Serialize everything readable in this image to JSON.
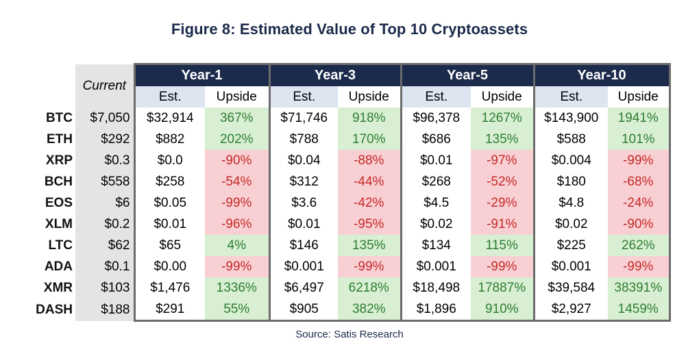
{
  "title": "Figure 8: Estimated Value of Top 10 Cryptoassets",
  "source": "Source: Satis Research",
  "current_label": "Current",
  "years": [
    "Year-1",
    "Year-3",
    "Year-5",
    "Year-10"
  ],
  "est_label": "Est.",
  "upside_label": "Upside",
  "colors": {
    "header_bg": "#1c2b4c",
    "positive_bg": "#d8efd3",
    "positive_text": "#2e7d32",
    "negative_bg": "#f8d0d3",
    "negative_text": "#c62828"
  },
  "rows": [
    {
      "ticker": "BTC",
      "current": "$7,050",
      "cells": [
        {
          "est": "$32,914",
          "upside": "367%",
          "sign": "pos"
        },
        {
          "est": "$71,746",
          "upside": "918%",
          "sign": "pos"
        },
        {
          "est": "$96,378",
          "upside": "1267%",
          "sign": "pos"
        },
        {
          "est": "$143,900",
          "upside": "1941%",
          "sign": "pos"
        }
      ]
    },
    {
      "ticker": "ETH",
      "current": "$292",
      "cells": [
        {
          "est": "$882",
          "upside": "202%",
          "sign": "pos"
        },
        {
          "est": "$788",
          "upside": "170%",
          "sign": "pos"
        },
        {
          "est": "$686",
          "upside": "135%",
          "sign": "pos"
        },
        {
          "est": "$588",
          "upside": "101%",
          "sign": "pos"
        }
      ]
    },
    {
      "ticker": "XRP",
      "current": "$0.3",
      "cells": [
        {
          "est": "$0.0",
          "upside": "-90%",
          "sign": "neg"
        },
        {
          "est": "$0.04",
          "upside": "-88%",
          "sign": "neg"
        },
        {
          "est": "$0.01",
          "upside": "-97%",
          "sign": "neg"
        },
        {
          "est": "$0.004",
          "upside": "-99%",
          "sign": "neg"
        }
      ]
    },
    {
      "ticker": "BCH",
      "current": "$558",
      "cells": [
        {
          "est": "$258",
          "upside": "-54%",
          "sign": "neg"
        },
        {
          "est": "$312",
          "upside": "-44%",
          "sign": "neg"
        },
        {
          "est": "$268",
          "upside": "-52%",
          "sign": "neg"
        },
        {
          "est": "$180",
          "upside": "-68%",
          "sign": "neg"
        }
      ]
    },
    {
      "ticker": "EOS",
      "current": "$6",
      "cells": [
        {
          "est": "$0.05",
          "upside": "-99%",
          "sign": "neg"
        },
        {
          "est": "$3.6",
          "upside": "-42%",
          "sign": "neg"
        },
        {
          "est": "$4.5",
          "upside": "-29%",
          "sign": "neg"
        },
        {
          "est": "$4.8",
          "upside": "-24%",
          "sign": "neg"
        }
      ]
    },
    {
      "ticker": "XLM",
      "current": "$0.2",
      "cells": [
        {
          "est": "$0.01",
          "upside": "-96%",
          "sign": "neg"
        },
        {
          "est": "$0.01",
          "upside": "-95%",
          "sign": "neg"
        },
        {
          "est": "$0.02",
          "upside": "-91%",
          "sign": "neg"
        },
        {
          "est": "$0.02",
          "upside": "-90%",
          "sign": "neg"
        }
      ]
    },
    {
      "ticker": "LTC",
      "current": "$62",
      "cells": [
        {
          "est": "$65",
          "upside": "4%",
          "sign": "pos"
        },
        {
          "est": "$146",
          "upside": "135%",
          "sign": "pos"
        },
        {
          "est": "$134",
          "upside": "115%",
          "sign": "pos"
        },
        {
          "est": "$225",
          "upside": "262%",
          "sign": "pos"
        }
      ]
    },
    {
      "ticker": "ADA",
      "current": "$0.1",
      "cells": [
        {
          "est": "$0.00",
          "upside": "-99%",
          "sign": "neg"
        },
        {
          "est": "$0.001",
          "upside": "-99%",
          "sign": "neg"
        },
        {
          "est": "$0.001",
          "upside": "-99%",
          "sign": "neg"
        },
        {
          "est": "$0.001",
          "upside": "-99%",
          "sign": "neg"
        }
      ]
    },
    {
      "ticker": "XMR",
      "current": "$103",
      "cells": [
        {
          "est": "$1,476",
          "upside": "1336%",
          "sign": "pos"
        },
        {
          "est": "$6,497",
          "upside": "6218%",
          "sign": "pos"
        },
        {
          "est": "$18,498",
          "upside": "17887%",
          "sign": "pos"
        },
        {
          "est": "$39,584",
          "upside": "38391%",
          "sign": "pos"
        }
      ]
    },
    {
      "ticker": "DASH",
      "current": "$188",
      "cells": [
        {
          "est": "$291",
          "upside": "55%",
          "sign": "pos"
        },
        {
          "est": "$905",
          "upside": "382%",
          "sign": "pos"
        },
        {
          "est": "$1,896",
          "upside": "910%",
          "sign": "pos"
        },
        {
          "est": "$2,927",
          "upside": "1459%",
          "sign": "pos"
        }
      ]
    }
  ]
}
